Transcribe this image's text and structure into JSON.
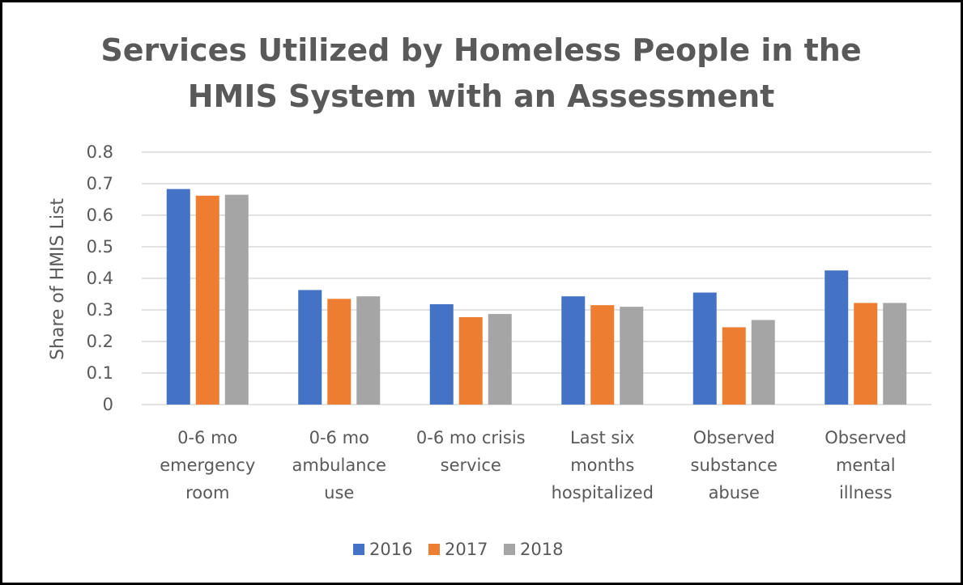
{
  "chart_data": {
    "type": "bar",
    "title_lines": [
      "Services Utilized by Homeless People in the",
      "HMIS System with an Assessment"
    ],
    "ylabel": "Share of  HMIS List",
    "xlabel": "",
    "ylim": [
      0,
      0.8
    ],
    "yticks": [
      "0",
      "0.1",
      "0.2",
      "0.3",
      "0.4",
      "0.5",
      "0.6",
      "0.7",
      "0.8"
    ],
    "grid": true,
    "legend_position": "bottom",
    "categories": [
      [
        "0-6 mo",
        "emergency",
        "room"
      ],
      [
        "0-6 mo",
        "ambulance",
        "use"
      ],
      [
        "0-6 mo crisis",
        "service"
      ],
      [
        "Last six",
        "months",
        "hospitalized"
      ],
      [
        "Observed",
        "substance",
        "abuse"
      ],
      [
        "Observed",
        "mental",
        "illness"
      ]
    ],
    "series": [
      {
        "name": "2016",
        "color": "#4472C4",
        "values": [
          0.683,
          0.363,
          0.318,
          0.343,
          0.355,
          0.425
        ]
      },
      {
        "name": "2017",
        "color": "#ED7D31",
        "values": [
          0.662,
          0.335,
          0.277,
          0.315,
          0.245,
          0.322
        ]
      },
      {
        "name": "2018",
        "color": "#A5A5A5",
        "values": [
          0.665,
          0.343,
          0.287,
          0.31,
          0.268,
          0.322
        ]
      }
    ]
  }
}
